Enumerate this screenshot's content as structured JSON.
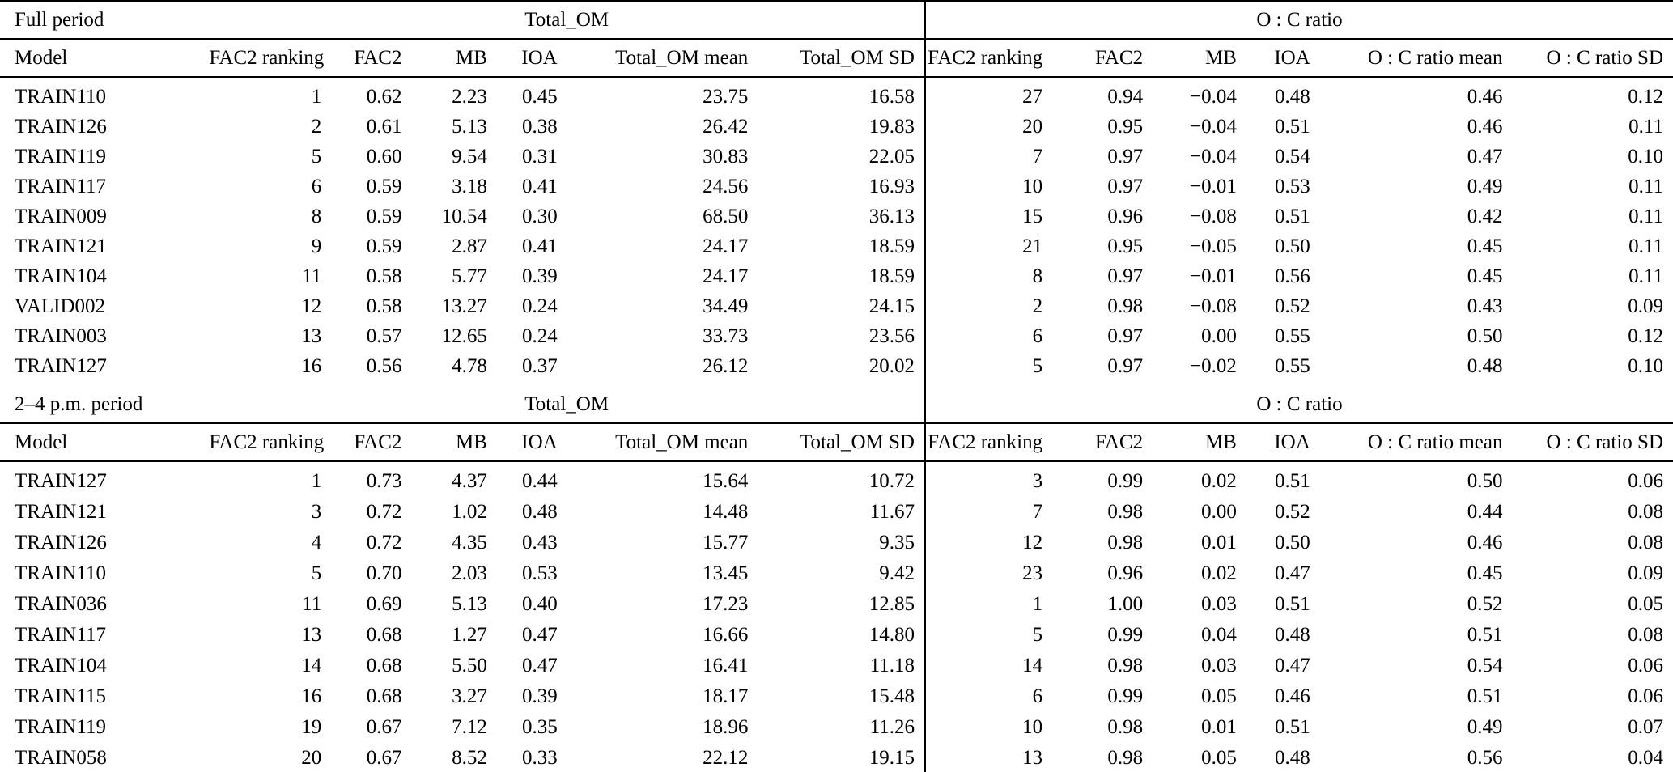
{
  "page": {
    "background_color": "#ffffff",
    "text_color": "#000000",
    "rule_color": "#000000"
  },
  "tables": [
    {
      "period_label": "Full period",
      "group_headers": [
        "Total_OM",
        "O : C ratio"
      ],
      "column_headers": [
        "Model",
        "FAC2 ranking",
        "FAC2",
        "MB",
        "IOA",
        "Total_OM mean",
        "Total_OM SD",
        "FAC2 ranking",
        "FAC2",
        "MB",
        "IOA",
        "O : C ratio mean",
        "O : C ratio SD"
      ],
      "rows": [
        [
          "TRAIN110",
          "1",
          "0.62",
          "2.23",
          "0.45",
          "23.75",
          "16.58",
          "27",
          "0.94",
          "−0.04",
          "0.48",
          "0.46",
          "0.12"
        ],
        [
          "TRAIN126",
          "2",
          "0.61",
          "5.13",
          "0.38",
          "26.42",
          "19.83",
          "20",
          "0.95",
          "−0.04",
          "0.51",
          "0.46",
          "0.11"
        ],
        [
          "TRAIN119",
          "5",
          "0.60",
          "9.54",
          "0.31",
          "30.83",
          "22.05",
          "7",
          "0.97",
          "−0.04",
          "0.54",
          "0.47",
          "0.10"
        ],
        [
          "TRAIN117",
          "6",
          "0.59",
          "3.18",
          "0.41",
          "24.56",
          "16.93",
          "10",
          "0.97",
          "−0.01",
          "0.53",
          "0.49",
          "0.11"
        ],
        [
          "TRAIN009",
          "8",
          "0.59",
          "10.54",
          "0.30",
          "68.50",
          "36.13",
          "15",
          "0.96",
          "−0.08",
          "0.51",
          "0.42",
          "0.11"
        ],
        [
          "TRAIN121",
          "9",
          "0.59",
          "2.87",
          "0.41",
          "24.17",
          "18.59",
          "21",
          "0.95",
          "−0.05",
          "0.50",
          "0.45",
          "0.11"
        ],
        [
          "TRAIN104",
          "11",
          "0.58",
          "5.77",
          "0.39",
          "24.17",
          "18.59",
          "8",
          "0.97",
          "−0.01",
          "0.56",
          "0.45",
          "0.11"
        ],
        [
          "VALID002",
          "12",
          "0.58",
          "13.27",
          "0.24",
          "34.49",
          "24.15",
          "2",
          "0.98",
          "−0.08",
          "0.52",
          "0.43",
          "0.09"
        ],
        [
          "TRAIN003",
          "13",
          "0.57",
          "12.65",
          "0.24",
          "33.73",
          "23.56",
          "6",
          "0.97",
          "0.00",
          "0.55",
          "0.50",
          "0.12"
        ],
        [
          "TRAIN127",
          "16",
          "0.56",
          "4.78",
          "0.37",
          "26.12",
          "20.02",
          "5",
          "0.97",
          "−0.02",
          "0.55",
          "0.48",
          "0.10"
        ]
      ]
    },
    {
      "period_label": "2–4 p.m. period",
      "group_headers": [
        "Total_OM",
        "O : C ratio"
      ],
      "column_headers": [
        "Model",
        "FAC2 ranking",
        "FAC2",
        "MB",
        "IOA",
        "Total_OM mean",
        "Total_OM SD",
        "FAC2 ranking",
        "FAC2",
        "MB",
        "IOA",
        "O : C ratio mean",
        "O : C ratio SD"
      ],
      "rows": [
        [
          "TRAIN127",
          "1",
          "0.73",
          "4.37",
          "0.44",
          "15.64",
          "10.72",
          "3",
          "0.99",
          "0.02",
          "0.51",
          "0.50",
          "0.06"
        ],
        [
          "TRAIN121",
          "3",
          "0.72",
          "1.02",
          "0.48",
          "14.48",
          "11.67",
          "7",
          "0.98",
          "0.00",
          "0.52",
          "0.44",
          "0.08"
        ],
        [
          "TRAIN126",
          "4",
          "0.72",
          "4.35",
          "0.43",
          "15.77",
          "9.35",
          "12",
          "0.98",
          "0.01",
          "0.50",
          "0.46",
          "0.08"
        ],
        [
          "TRAIN110",
          "5",
          "0.70",
          "2.03",
          "0.53",
          "13.45",
          "9.42",
          "23",
          "0.96",
          "0.02",
          "0.47",
          "0.45",
          "0.09"
        ],
        [
          "TRAIN036",
          "11",
          "0.69",
          "5.13",
          "0.40",
          "17.23",
          "12.85",
          "1",
          "1.00",
          "0.03",
          "0.51",
          "0.52",
          "0.05"
        ],
        [
          "TRAIN117",
          "13",
          "0.68",
          "1.27",
          "0.47",
          "16.66",
          "14.80",
          "5",
          "0.99",
          "0.04",
          "0.48",
          "0.51",
          "0.08"
        ],
        [
          "TRAIN104",
          "14",
          "0.68",
          "5.50",
          "0.47",
          "16.41",
          "11.18",
          "14",
          "0.98",
          "0.03",
          "0.47",
          "0.54",
          "0.06"
        ],
        [
          "TRAIN115",
          "16",
          "0.68",
          "3.27",
          "0.39",
          "18.17",
          "15.48",
          "6",
          "0.99",
          "0.05",
          "0.46",
          "0.51",
          "0.06"
        ],
        [
          "TRAIN119",
          "19",
          "0.67",
          "7.12",
          "0.35",
          "18.96",
          "11.26",
          "10",
          "0.98",
          "0.01",
          "0.51",
          "0.49",
          "0.07"
        ],
        [
          "TRAIN058",
          "20",
          "0.67",
          "8.52",
          "0.33",
          "22.12",
          "19.15",
          "13",
          "0.98",
          "0.05",
          "0.48",
          "0.56",
          "0.04"
        ]
      ]
    }
  ]
}
